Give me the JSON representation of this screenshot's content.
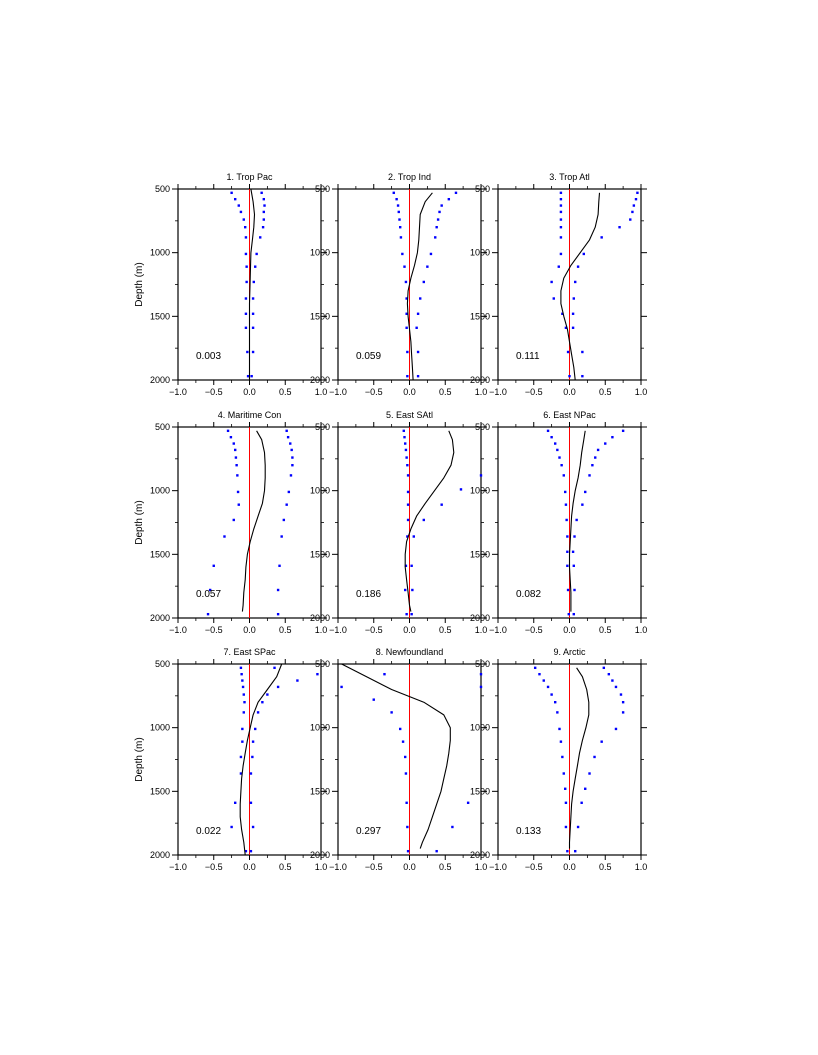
{
  "figure": {
    "ylabel": "Depth (m)"
  },
  "chart_data": [
    {
      "type": "line",
      "title": "1. Trop Pac",
      "value_label": "0.003",
      "xlim": [
        -1.0,
        1.0
      ],
      "ylim": [
        500,
        2000
      ],
      "y_inverted": true,
      "xticks": [
        "−1.0",
        "−0.5",
        "0.0",
        "0.5",
        "1.0"
      ],
      "yticks": [
        "500",
        "1000",
        "1500",
        "2000"
      ],
      "zero_line_color": "#ff0000",
      "curve_color": "#000000",
      "dot_color": "#0000ff",
      "curve": {
        "depth": [
          500,
          600,
          700,
          800,
          900,
          1000,
          1200,
          1400,
          1600,
          1800,
          2000
        ],
        "x": [
          0.02,
          0.05,
          0.07,
          0.06,
          0.04,
          0.02,
          0.01,
          0.0,
          0.0,
          0.0,
          0.0
        ]
      },
      "dots_left": {
        "depth": [
          530,
          580,
          630,
          680,
          740,
          800,
          880,
          1010,
          1110,
          1230,
          1360,
          1480,
          1590,
          1780,
          1970
        ],
        "x": [
          -0.25,
          -0.2,
          -0.15,
          -0.12,
          -0.08,
          -0.06,
          -0.05,
          -0.05,
          -0.04,
          -0.04,
          -0.05,
          -0.05,
          -0.05,
          -0.03,
          -0.02
        ]
      },
      "dots_right": {
        "depth": [
          530,
          580,
          630,
          680,
          740,
          800,
          880,
          1010,
          1110,
          1230,
          1360,
          1480,
          1590,
          1780,
          1970
        ],
        "x": [
          0.17,
          0.2,
          0.21,
          0.2,
          0.2,
          0.19,
          0.15,
          0.1,
          0.08,
          0.06,
          0.05,
          0.05,
          0.05,
          0.05,
          0.03
        ]
      }
    },
    {
      "type": "line",
      "title": "2. Trop Ind",
      "value_label": "0.059",
      "xlim": [
        -1.0,
        1.0
      ],
      "ylim": [
        500,
        2000
      ],
      "y_inverted": true,
      "xticks": [
        "−1.0",
        "−0.5",
        "0.0",
        "0.5",
        "1.0"
      ],
      "yticks": [
        "500",
        "1000",
        "1500",
        "2000"
      ],
      "zero_line_color": "#ff0000",
      "curve_color": "#000000",
      "dot_color": "#0000ff",
      "curve": {
        "depth": [
          530,
          600,
          700,
          800,
          900,
          1000,
          1100,
          1200,
          1300,
          1400,
          1500,
          1600,
          1700,
          1800,
          1900,
          2000
        ],
        "x": [
          0.32,
          0.22,
          0.15,
          0.14,
          0.13,
          0.11,
          0.07,
          0.02,
          -0.02,
          -0.03,
          -0.02,
          0.0,
          0.02,
          0.03,
          0.04,
          0.05
        ]
      },
      "dots_left": {
        "depth": [
          530,
          580,
          630,
          680,
          740,
          800,
          880,
          1010,
          1110,
          1230,
          1360,
          1480,
          1590,
          1780,
          1970
        ],
        "x": [
          -0.22,
          -0.18,
          -0.16,
          -0.15,
          -0.14,
          -0.13,
          -0.12,
          -0.1,
          -0.07,
          -0.05,
          -0.04,
          -0.04,
          -0.04,
          -0.03,
          -0.03
        ]
      },
      "dots_right": {
        "depth": [
          530,
          580,
          630,
          680,
          740,
          800,
          880,
          1010,
          1110,
          1230,
          1360,
          1480,
          1590,
          1780,
          1970
        ],
        "x": [
          0.65,
          0.55,
          0.45,
          0.42,
          0.4,
          0.38,
          0.36,
          0.3,
          0.25,
          0.2,
          0.15,
          0.12,
          0.1,
          0.12,
          0.12
        ]
      }
    },
    {
      "type": "line",
      "title": "3. Trop Atl",
      "value_label": "0.111",
      "xlim": [
        -1.0,
        1.0
      ],
      "ylim": [
        500,
        2000
      ],
      "y_inverted": true,
      "xticks": [
        "−1.0",
        "−0.5",
        "0.0",
        "0.5",
        "1.0"
      ],
      "yticks": [
        "500",
        "1000",
        "1500",
        "2000"
      ],
      "zero_line_color": "#ff0000",
      "curve_color": "#000000",
      "dot_color": "#0000ff",
      "curve": {
        "depth": [
          530,
          600,
          700,
          800,
          900,
          1000,
          1100,
          1200,
          1300,
          1400,
          1500,
          1600,
          1700,
          1800,
          1900,
          2000
        ],
        "x": [
          0.42,
          0.41,
          0.4,
          0.36,
          0.28,
          0.15,
          0.02,
          -0.08,
          -0.12,
          -0.12,
          -0.08,
          -0.03,
          0.0,
          0.03,
          0.06,
          0.08
        ]
      },
      "dots_left": {
        "depth": [
          530,
          580,
          630,
          680,
          740,
          800,
          880,
          1010,
          1110,
          1230,
          1360,
          1480,
          1590,
          1780,
          1970
        ],
        "x": [
          -0.12,
          -0.12,
          -0.12,
          -0.12,
          -0.12,
          -0.12,
          -0.12,
          -0.12,
          -0.15,
          -0.25,
          -0.22,
          -0.1,
          -0.05,
          -0.02,
          0.0
        ]
      },
      "dots_right": {
        "depth": [
          530,
          580,
          630,
          680,
          740,
          800,
          880,
          1010,
          1110,
          1230,
          1360,
          1480,
          1590,
          1780,
          1970
        ],
        "x": [
          0.95,
          0.93,
          0.9,
          0.88,
          0.85,
          0.7,
          0.45,
          0.2,
          0.12,
          0.08,
          0.06,
          0.05,
          0.05,
          0.18,
          0.18
        ]
      }
    },
    {
      "type": "line",
      "title": "4. Maritime Con",
      "value_label": "0.057",
      "xlim": [
        -1.0,
        1.0
      ],
      "ylim": [
        500,
        2000
      ],
      "y_inverted": true,
      "xticks": [
        "−1.0",
        "−0.5",
        "0.0",
        "0.5",
        "1.0"
      ],
      "yticks": [
        "500",
        "1000",
        "1500",
        "2000"
      ],
      "zero_line_color": "#ff0000",
      "curve_color": "#000000",
      "dot_color": "#0000ff",
      "curve": {
        "depth": [
          530,
          600,
          700,
          800,
          900,
          1000,
          1100,
          1200,
          1300,
          1400,
          1500,
          1600,
          1700,
          1800,
          1900,
          1950
        ],
        "x": [
          0.1,
          0.17,
          0.21,
          0.22,
          0.22,
          0.21,
          0.18,
          0.12,
          0.06,
          0.01,
          -0.03,
          -0.05,
          -0.06,
          -0.08,
          -0.09,
          -0.1
        ]
      },
      "dots_left": {
        "depth": [
          530,
          580,
          630,
          680,
          740,
          800,
          880,
          1010,
          1110,
          1230,
          1360,
          1590,
          1780,
          1970
        ],
        "x": [
          -0.3,
          -0.26,
          -0.22,
          -0.2,
          -0.19,
          -0.18,
          -0.17,
          -0.16,
          -0.15,
          -0.22,
          -0.35,
          -0.5,
          -0.55,
          -0.58
        ]
      },
      "dots_right": {
        "depth": [
          530,
          580,
          630,
          680,
          740,
          800,
          880,
          1010,
          1110,
          1230,
          1360,
          1590,
          1780,
          1970
        ],
        "x": [
          0.52,
          0.54,
          0.57,
          0.59,
          0.6,
          0.6,
          0.58,
          0.55,
          0.52,
          0.48,
          0.45,
          0.42,
          0.4,
          0.4
        ]
      }
    },
    {
      "type": "line",
      "title": "5. East SAtl",
      "value_label": "0.186",
      "xlim": [
        -1.0,
        1.0
      ],
      "ylim": [
        500,
        2000
      ],
      "y_inverted": true,
      "xticks": [
        "−1.0",
        "−0.5",
        "0.0",
        "0.5",
        "1.0"
      ],
      "yticks": [
        "500",
        "1000",
        "1500",
        "2000"
      ],
      "zero_line_color": "#ff0000",
      "curve_color": "#000000",
      "dot_color": "#0000ff",
      "curve": {
        "depth": [
          530,
          600,
          700,
          800,
          900,
          1000,
          1100,
          1200,
          1300,
          1400,
          1500,
          1600,
          1700,
          1800,
          1900,
          1950
        ],
        "x": [
          0.55,
          0.6,
          0.62,
          0.58,
          0.48,
          0.35,
          0.22,
          0.1,
          0.02,
          -0.04,
          -0.06,
          -0.06,
          -0.04,
          -0.02,
          0.0,
          0.02
        ]
      },
      "dots_left": {
        "depth": [
          530,
          580,
          630,
          680,
          740,
          800,
          880,
          1010,
          1110,
          1230,
          1360,
          1590,
          1780,
          1970
        ],
        "x": [
          -0.08,
          -0.07,
          -0.06,
          -0.05,
          -0.04,
          -0.03,
          -0.02,
          -0.02,
          -0.02,
          -0.02,
          -0.03,
          -0.05,
          -0.06,
          -0.04
        ]
      },
      "dots_right": {
        "depth": [
          880,
          990,
          1110,
          1230,
          1360,
          1590,
          1780,
          1970
        ],
        "x": [
          1.0,
          0.72,
          0.45,
          0.2,
          0.06,
          0.03,
          0.04,
          0.03
        ]
      }
    },
    {
      "type": "line",
      "title": "6. East NPac",
      "value_label": "0.082",
      "xlim": [
        -1.0,
        1.0
      ],
      "ylim": [
        500,
        2000
      ],
      "y_inverted": true,
      "xticks": [
        "−1.0",
        "−0.5",
        "0.0",
        "0.5",
        "1.0"
      ],
      "yticks": [
        "500",
        "1000",
        "1500",
        "2000"
      ],
      "zero_line_color": "#ff0000",
      "curve_color": "#000000",
      "dot_color": "#0000ff",
      "curve": {
        "depth": [
          530,
          600,
          700,
          800,
          900,
          1000,
          1100,
          1200,
          1300,
          1400,
          1500,
          1600,
          1700,
          1800,
          1900,
          1950
        ],
        "x": [
          0.22,
          0.2,
          0.17,
          0.15,
          0.12,
          0.08,
          0.05,
          0.03,
          0.02,
          0.01,
          0.0,
          0.0,
          0.01,
          0.02,
          0.02,
          0.02
        ]
      },
      "dots_left": {
        "depth": [
          530,
          580,
          630,
          680,
          740,
          800,
          880,
          1010,
          1110,
          1230,
          1360,
          1480,
          1590,
          1780,
          1970
        ],
        "x": [
          -0.3,
          -0.25,
          -0.2,
          -0.17,
          -0.14,
          -0.11,
          -0.08,
          -0.06,
          -0.05,
          -0.04,
          -0.03,
          -0.03,
          -0.03,
          -0.02,
          -0.01
        ]
      },
      "dots_right": {
        "depth": [
          530,
          580,
          630,
          680,
          740,
          800,
          880,
          1010,
          1110,
          1230,
          1360,
          1480,
          1590,
          1780,
          1970
        ],
        "x": [
          0.75,
          0.6,
          0.5,
          0.4,
          0.36,
          0.32,
          0.28,
          0.22,
          0.18,
          0.1,
          0.07,
          0.05,
          0.06,
          0.07,
          0.06
        ]
      }
    },
    {
      "type": "line",
      "title": "7. East SPac",
      "value_label": "0.022",
      "xlim": [
        -1.0,
        1.0
      ],
      "ylim": [
        500,
        2000
      ],
      "y_inverted": true,
      "xticks": [
        "−1.0",
        "−0.5",
        "0.0",
        "0.5",
        "1.0"
      ],
      "yticks": [
        "500",
        "1000",
        "1500",
        "2000"
      ],
      "zero_line_color": "#ff0000",
      "curve_color": "#000000",
      "dot_color": "#0000ff",
      "curve": {
        "depth": [
          500,
          600,
          700,
          800,
          900,
          1000,
          1100,
          1200,
          1300,
          1400,
          1500,
          1600,
          1700,
          1800,
          1900,
          2000
        ],
        "x": [
          0.45,
          0.38,
          0.25,
          0.12,
          0.05,
          0.01,
          -0.03,
          -0.06,
          -0.09,
          -0.11,
          -0.12,
          -0.13,
          -0.13,
          -0.11,
          -0.08,
          -0.06
        ]
      },
      "dots_left": {
        "depth": [
          530,
          580,
          630,
          680,
          740,
          800,
          880,
          1010,
          1110,
          1230,
          1360,
          1590,
          1780,
          1970
        ],
        "x": [
          -0.12,
          -0.11,
          -0.1,
          -0.09,
          -0.08,
          -0.07,
          -0.08,
          -0.1,
          -0.1,
          -0.12,
          -0.12,
          -0.2,
          -0.25,
          -0.05
        ]
      },
      "dots_right": {
        "depth": [
          530,
          580,
          630,
          680,
          740,
          800,
          880,
          1010,
          1110,
          1230,
          1360,
          1590,
          1780,
          1970
        ],
        "x": [
          0.35,
          0.95,
          0.67,
          0.4,
          0.25,
          0.18,
          0.12,
          0.08,
          0.05,
          0.04,
          0.02,
          0.02,
          0.05,
          0.02
        ]
      }
    },
    {
      "type": "line",
      "title": "8. Newfoundland",
      "value_label": "0.297",
      "xlim": [
        -1.0,
        1.0
      ],
      "ylim": [
        500,
        2000
      ],
      "y_inverted": true,
      "xticks": [
        "−1.0",
        "−0.5",
        "0.0",
        "0.5",
        "1.0"
      ],
      "yticks": [
        "500",
        "1000",
        "1500",
        "2000"
      ],
      "zero_line_color": "#ff0000",
      "curve_color": "#000000",
      "dot_color": "#0000ff",
      "curve": {
        "depth": [
          500,
          600,
          700,
          800,
          900,
          1000,
          1100,
          1200,
          1300,
          1400,
          1500,
          1600,
          1700,
          1800,
          1900,
          1950
        ],
        "x": [
          -0.95,
          -0.6,
          -0.25,
          0.2,
          0.48,
          0.57,
          0.57,
          0.55,
          0.52,
          0.48,
          0.44,
          0.38,
          0.32,
          0.26,
          0.18,
          0.15
        ]
      },
      "dots_left": {
        "depth": [
          580,
          680,
          780,
          880,
          1010,
          1110,
          1230,
          1360,
          1590,
          1780,
          1970
        ],
        "x": [
          -0.35,
          -0.95,
          -0.5,
          -0.25,
          -0.13,
          -0.09,
          -0.06,
          -0.05,
          -0.04,
          -0.03,
          -0.02
        ]
      },
      "dots_right": {
        "depth": [
          580,
          680,
          1590,
          1780,
          1970
        ],
        "x": [
          1.0,
          1.0,
          0.82,
          0.6,
          0.38
        ]
      }
    },
    {
      "type": "line",
      "title": "9. Arctic",
      "value_label": "0.133",
      "xlim": [
        -1.0,
        1.0
      ],
      "ylim": [
        500,
        2000
      ],
      "y_inverted": true,
      "xticks": [
        "−1.0",
        "−0.5",
        "0.0",
        "0.5",
        "1.0"
      ],
      "yticks": [
        "500",
        "1000",
        "1500",
        "2000"
      ],
      "zero_line_color": "#ff0000",
      "curve_color": "#000000",
      "dot_color": "#0000ff",
      "curve": {
        "depth": [
          530,
          600,
          700,
          800,
          900,
          1000,
          1100,
          1200,
          1300,
          1400,
          1500,
          1600,
          1700,
          1800,
          1900,
          1950
        ],
        "x": [
          0.1,
          0.18,
          0.24,
          0.27,
          0.27,
          0.23,
          0.18,
          0.14,
          0.11,
          0.08,
          0.05,
          0.03,
          0.02,
          0.01,
          0.0,
          0.0
        ]
      },
      "dots_left": {
        "depth": [
          530,
          580,
          630,
          680,
          740,
          800,
          880,
          1010,
          1110,
          1230,
          1360,
          1480,
          1590,
          1780,
          1970
        ],
        "x": [
          -0.48,
          -0.42,
          -0.36,
          -0.3,
          -0.25,
          -0.2,
          -0.17,
          -0.14,
          -0.12,
          -0.1,
          -0.08,
          -0.06,
          -0.05,
          -0.05,
          -0.03
        ]
      },
      "dots_right": {
        "depth": [
          530,
          580,
          630,
          680,
          740,
          800,
          880,
          1010,
          1110,
          1230,
          1360,
          1480,
          1590,
          1780,
          1970
        ],
        "x": [
          0.48,
          0.55,
          0.6,
          0.65,
          0.72,
          0.75,
          0.75,
          0.65,
          0.45,
          0.35,
          0.28,
          0.22,
          0.17,
          0.12,
          0.08
        ]
      }
    }
  ]
}
